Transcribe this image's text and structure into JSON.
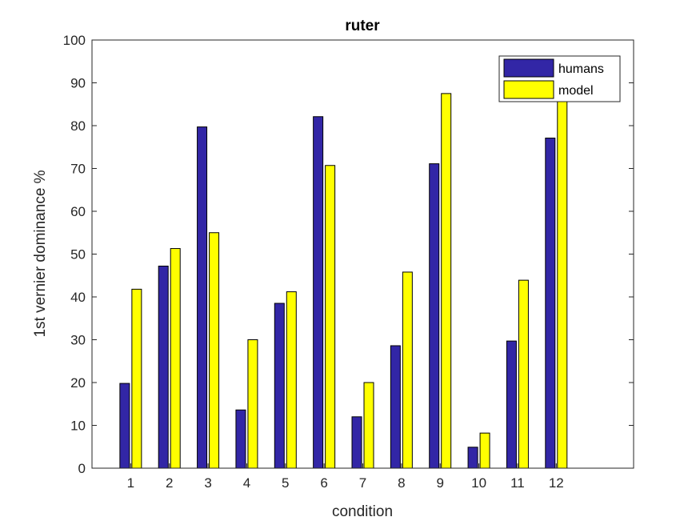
{
  "chart_data": {
    "type": "bar",
    "title": "ruter",
    "xlabel": "condition",
    "ylabel": "1st vernier dominance %",
    "categories": [
      "1",
      "2",
      "3",
      "4",
      "5",
      "6",
      "7",
      "8",
      "9",
      "10",
      "11",
      "12"
    ],
    "ylim": [
      0,
      100
    ],
    "xlim": [
      0,
      14
    ],
    "yticks": [
      "0",
      "10",
      "20",
      "30",
      "40",
      "50",
      "60",
      "70",
      "80",
      "90",
      "100"
    ],
    "grid": false,
    "legend_position": "top-right",
    "series": [
      {
        "name": "humans",
        "color": "#3226A6",
        "values": [
          19.8,
          47.2,
          79.7,
          13.6,
          38.5,
          82.1,
          12.0,
          28.6,
          71.1,
          4.9,
          29.7,
          77.1
        ]
      },
      {
        "name": "model",
        "color": "#FFFF00",
        "values": [
          41.8,
          51.3,
          55.0,
          30.0,
          41.2,
          70.7,
          20.0,
          45.8,
          87.5,
          8.2,
          43.9,
          91.0
        ]
      }
    ]
  }
}
